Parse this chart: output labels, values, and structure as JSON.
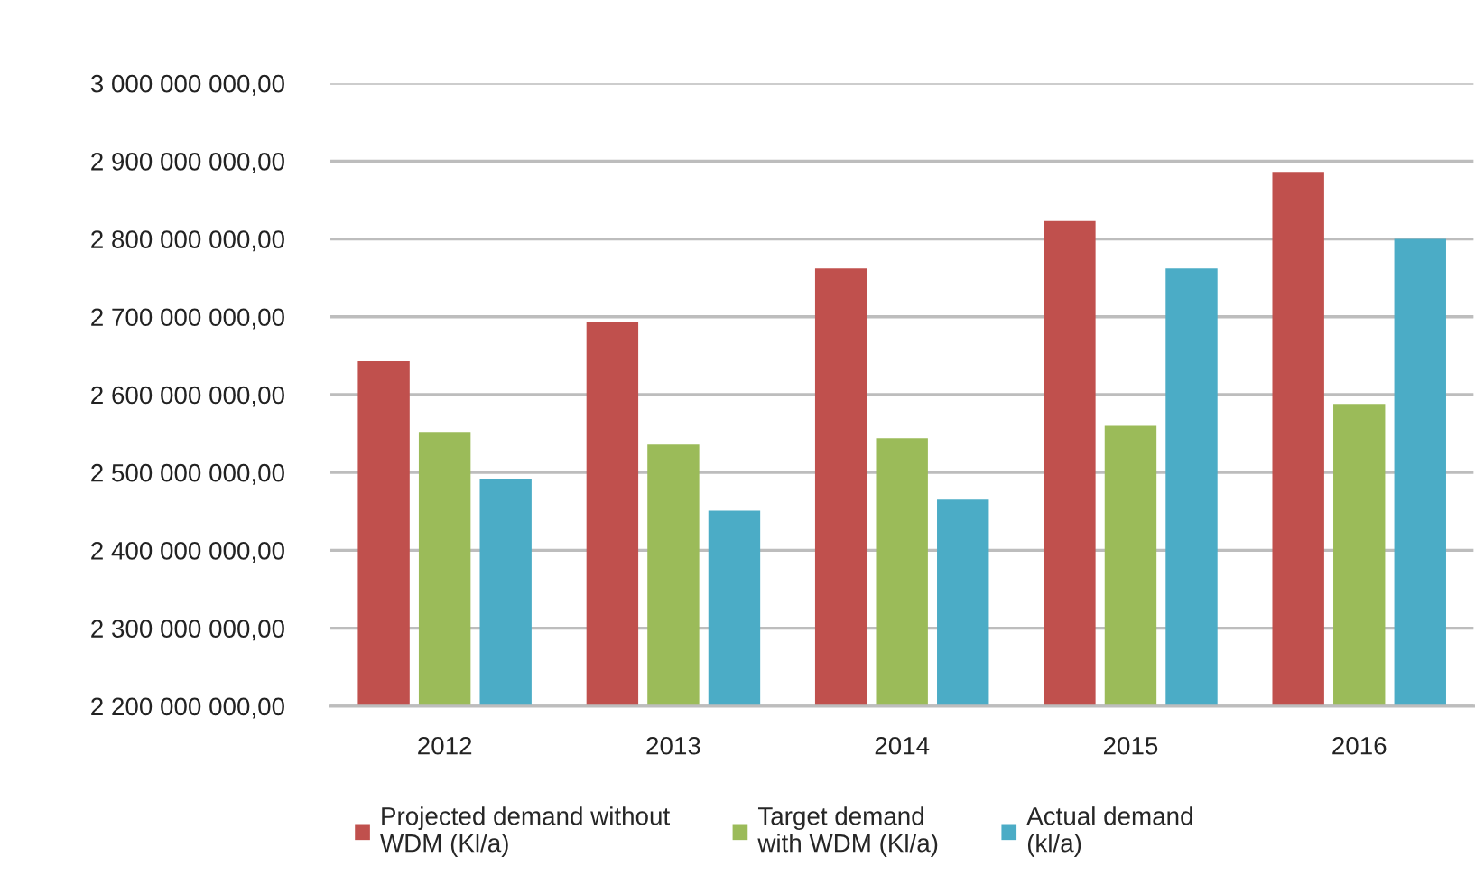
{
  "chart_data": {
    "type": "bar",
    "categories": [
      "2012",
      "2013",
      "2014",
      "2015",
      "2016"
    ],
    "series": [
      {
        "name": "Projected demand without\nWDM (Kl/a)",
        "color": "#c0504d",
        "values": [
          2643000000,
          2694000000,
          2762000000,
          2823000000,
          2885000000
        ]
      },
      {
        "name": "Target demand\nwith WDM (Kl/a)",
        "color": "#9bbb59",
        "values": [
          2552000000,
          2536000000,
          2544000000,
          2560000000,
          2588000000
        ]
      },
      {
        "name": "Actual demand\n(kl/a)",
        "color": "#4bacc6",
        "values": [
          2492000000,
          2451000000,
          2465000000,
          2762000000,
          2800000000
        ]
      }
    ],
    "ylim": [
      2200000000,
      3000000000
    ],
    "yticks": [
      {
        "value": 2200000000,
        "label": "2 200 000 000,00"
      },
      {
        "value": 2300000000,
        "label": "2 300 000 000,00"
      },
      {
        "value": 2400000000,
        "label": "2 400 000 000,00"
      },
      {
        "value": 2500000000,
        "label": "2 500 000 000,00"
      },
      {
        "value": 2600000000,
        "label": "2 600 000 000,00"
      },
      {
        "value": 2700000000,
        "label": "2 700 000 000,00"
      },
      {
        "value": 2800000000,
        "label": "2 800 000 000,00"
      },
      {
        "value": 2900000000,
        "label": "2 900 000 000,00"
      },
      {
        "value": 3000000000,
        "label": "3 000 000 000,00"
      }
    ],
    "grid": "y",
    "legend": "bottom"
  }
}
